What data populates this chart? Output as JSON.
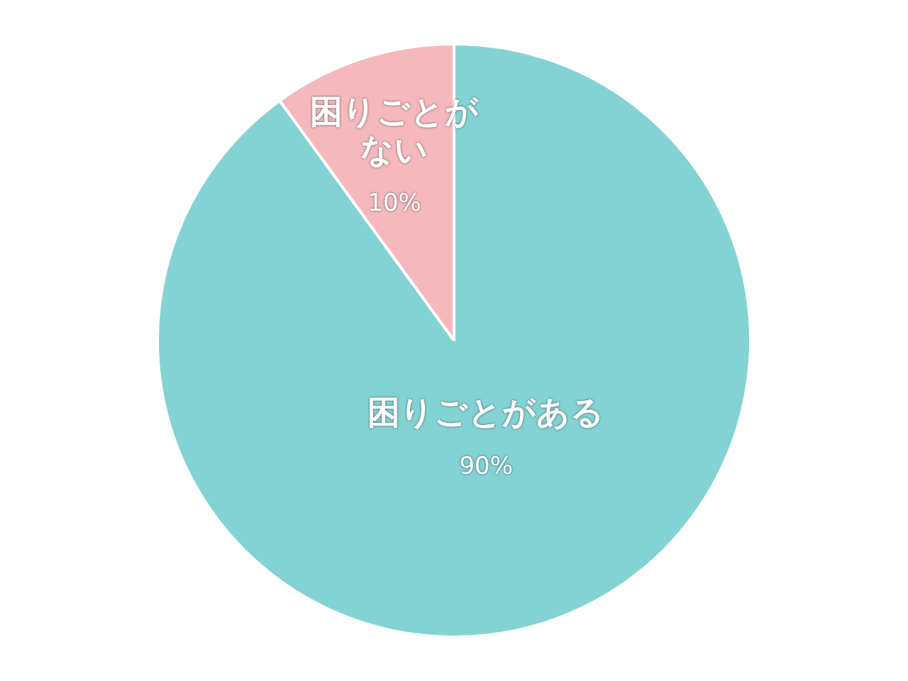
{
  "chart_data": {
    "type": "pie",
    "categories": [
      "困りごとがある",
      "困りごとがない"
    ],
    "values": [
      90,
      10
    ],
    "value_labels": [
      "90%",
      "10%"
    ],
    "colors": [
      "#83d3d4",
      "#f4b8bd"
    ],
    "legend": false
  }
}
